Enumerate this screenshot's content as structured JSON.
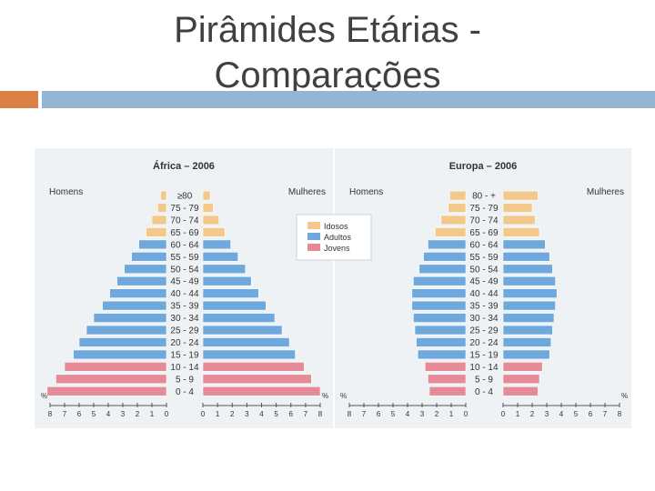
{
  "title_line1": "Pirâmides Etárias -",
  "title_line2": "Comparações",
  "colors": {
    "idosos": "#f3c98b",
    "adultos": "#6fa8dc",
    "jovens": "#e58a96",
    "panel": "#eef2f5"
  },
  "age_groups": [
    "0 - 4",
    "5 - 9",
    "10 - 14",
    "15 - 19",
    "20 - 24",
    "25 - 29",
    "30 - 34",
    "35 - 39",
    "40 - 44",
    "45 - 49",
    "50 - 54",
    "55 - 59",
    "60 - 64",
    "65 - 69",
    "70 - 74",
    "75 - 79"
  ],
  "legend": [
    "Idosos",
    "Adultos",
    "Jovens"
  ],
  "chart_data": [
    {
      "type": "bar",
      "title": "África – 2006",
      "left_label": "Homens",
      "right_label": "Mulheres",
      "unit": "%",
      "xlim": [
        0,
        8
      ],
      "ticks": [
        "0",
        "1",
        "2",
        "3",
        "4",
        "5",
        "6",
        "7",
        "8"
      ],
      "categories": [
        "0 - 4",
        "5 - 9",
        "10 - 14",
        "15 - 19",
        "20 - 24",
        "25 - 29",
        "30 - 34",
        "35 - 39",
        "40 - 44",
        "45 - 49",
        "50 - 54",
        "55 - 59",
        "60 - 64",
        "65 - 69",
        "70 - 74",
        "75 - 79",
        "≥80"
      ],
      "groups": [
        "jovens",
        "jovens",
        "jovens",
        "adultos",
        "adultos",
        "adultos",
        "adultos",
        "adultos",
        "adultos",
        "adultos",
        "adultos",
        "adultos",
        "adultos",
        "idosos",
        "idosos",
        "idosos",
        "idosos"
      ],
      "series": [
        {
          "name": "Homens",
          "values": [
            8.2,
            7.6,
            7.0,
            6.4,
            6.0,
            5.5,
            5.0,
            4.4,
            3.9,
            3.4,
            2.9,
            2.4,
            1.9,
            1.4,
            1.0,
            0.6,
            0.4
          ]
        },
        {
          "name": "Mulheres",
          "values": [
            8.0,
            7.4,
            6.9,
            6.3,
            5.9,
            5.4,
            4.9,
            4.3,
            3.8,
            3.3,
            2.9,
            2.4,
            1.9,
            1.5,
            1.1,
            0.7,
            0.5
          ]
        }
      ]
    },
    {
      "type": "bar",
      "title": "Europa – 2006",
      "left_label": "Homens",
      "right_label": "Mulheres",
      "unit": "%",
      "xlim": [
        0,
        8
      ],
      "ticks": [
        "0",
        "1",
        "2",
        "3",
        "4",
        "5",
        "6",
        "7",
        "8"
      ],
      "categories": [
        "0 - 4",
        "5 - 9",
        "10 - 14",
        "15 - 19",
        "20 - 24",
        "25 - 29",
        "30 - 34",
        "35 - 39",
        "40 - 44",
        "45 - 49",
        "50 - 54",
        "55 - 59",
        "60 - 64",
        "65 - 69",
        "70 - 74",
        "75 - 79",
        "80 - +"
      ],
      "groups": [
        "jovens",
        "jovens",
        "jovens",
        "adultos",
        "adultos",
        "adultos",
        "adultos",
        "adultos",
        "adultos",
        "adultos",
        "adultos",
        "adultos",
        "adultos",
        "idosos",
        "idosos",
        "idosos",
        "idosos"
      ],
      "series": [
        {
          "name": "Homens",
          "values": [
            2.5,
            2.6,
            2.8,
            3.3,
            3.4,
            3.5,
            3.6,
            3.7,
            3.7,
            3.6,
            3.2,
            2.9,
            2.6,
            2.1,
            1.7,
            1.2,
            1.1
          ]
        },
        {
          "name": "Mulheres",
          "values": [
            2.4,
            2.5,
            2.7,
            3.2,
            3.3,
            3.4,
            3.5,
            3.6,
            3.7,
            3.6,
            3.4,
            3.2,
            2.9,
            2.5,
            2.2,
            2.0,
            2.4
          ]
        }
      ]
    }
  ]
}
